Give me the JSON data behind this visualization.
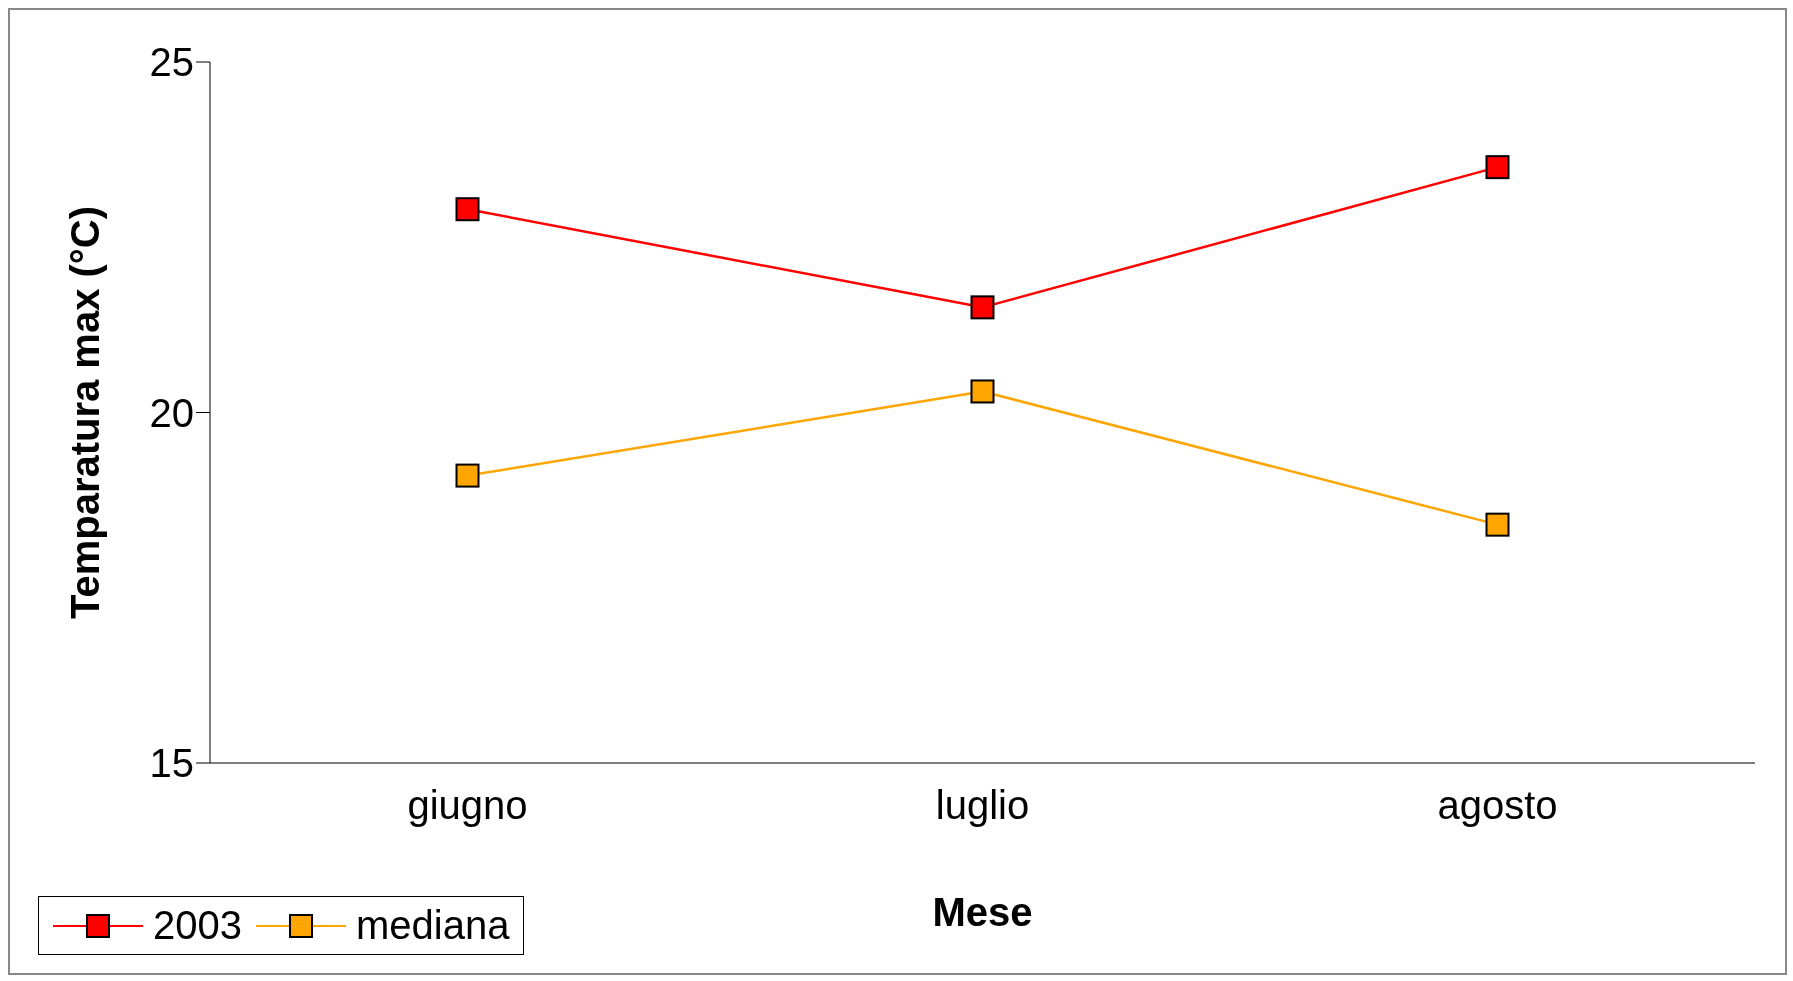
{
  "chart_data": {
    "type": "line",
    "xlabel": "Mese",
    "ylabel": "Temparatura max (°C)",
    "categories": [
      "giugno",
      "luglio",
      "agosto"
    ],
    "series": [
      {
        "name": "2003",
        "color": "#ff0000",
        "values": [
          22.9,
          21.5,
          23.5
        ]
      },
      {
        "name": "mediana",
        "color": "#ffa500",
        "values": [
          19.1,
          20.3,
          18.4
        ]
      }
    ],
    "ylim": [
      15,
      25
    ],
    "yticks": [
      15,
      20,
      25
    ],
    "grid": false,
    "legend": "bottom left",
    "marker": "square",
    "line_style": "solid"
  }
}
